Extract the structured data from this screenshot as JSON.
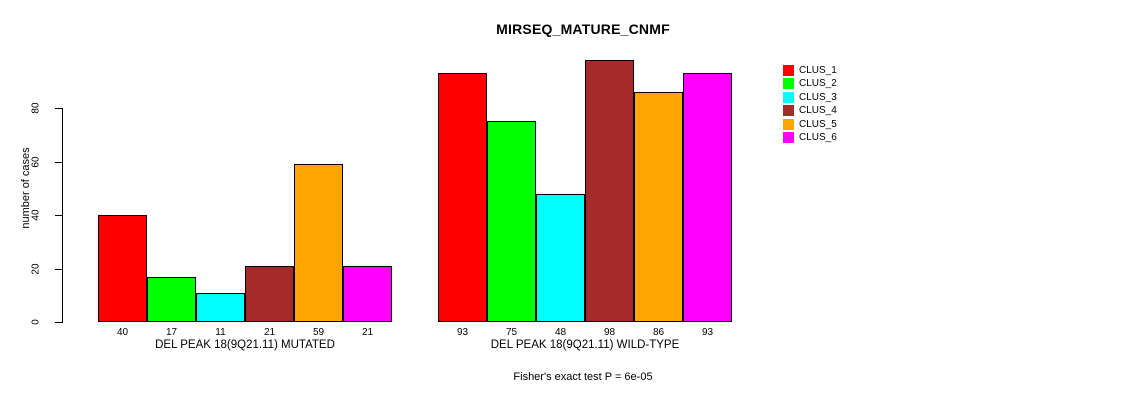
{
  "page": {
    "background_color": "#ffffff",
    "text_color": "#000000"
  },
  "chart_data": {
    "type": "bar",
    "title": "MIRSEQ_MATURE_CNMF",
    "xlabel": "",
    "ylabel": "number of cases",
    "ylim": [
      0,
      100
    ],
    "yticks": [
      0,
      20,
      40,
      60,
      80
    ],
    "grid": false,
    "legend_position": "right",
    "categories": [
      "DEL PEAK 18(9Q21.11) MUTATED",
      "DEL PEAK 18(9Q21.11) WILD-TYPE"
    ],
    "series": [
      {
        "name": "CLUS_1",
        "color": "#FF0000",
        "values": [
          40,
          93
        ]
      },
      {
        "name": "CLUS_2",
        "color": "#00FF00",
        "values": [
          17,
          75
        ]
      },
      {
        "name": "CLUS_3",
        "color": "#00FFFF",
        "values": [
          11,
          48
        ]
      },
      {
        "name": "CLUS_4",
        "color": "#A52A2A",
        "values": [
          21,
          98
        ]
      },
      {
        "name": "CLUS_5",
        "color": "#FFA500",
        "values": [
          59,
          86
        ]
      },
      {
        "name": "CLUS_6",
        "color": "#FF00FF",
        "values": [
          21,
          93
        ]
      }
    ],
    "bar_value_labels": [
      [
        "40",
        "17",
        "11",
        "21",
        "59",
        "21"
      ],
      [
        "93",
        "75",
        "48",
        "98",
        "86",
        "93"
      ]
    ]
  },
  "footer": {
    "caption": "Fisher's exact test P = 6e-05"
  }
}
